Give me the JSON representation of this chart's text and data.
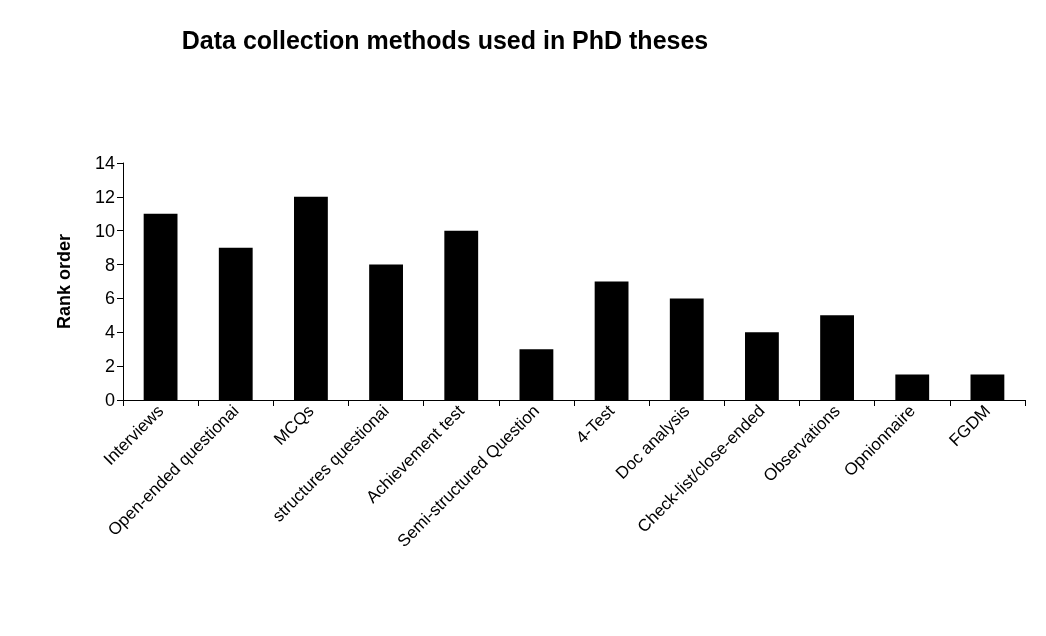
{
  "chart_data": {
    "type": "bar",
    "title": "Data collection methods used in PhD theses",
    "ylabel": "Rank order",
    "categories": [
      "Interviews",
      "Open-ended questionai",
      "MCQs",
      "structures questionai",
      "Achievement test",
      "Semi-structured Question",
      "4-Test",
      "Doc analysis",
      "Check-list/close-ended",
      "Observations",
      "Opnionnaire",
      "FGDM"
    ],
    "values": [
      11,
      9,
      12,
      8,
      10,
      3,
      7,
      6,
      4,
      5,
      1.5,
      1.5
    ],
    "color": "#000000",
    "ylim": [
      0,
      14
    ],
    "yticks": [
      0,
      2,
      4,
      6,
      8,
      10,
      12,
      14
    ],
    "grid": false
  }
}
